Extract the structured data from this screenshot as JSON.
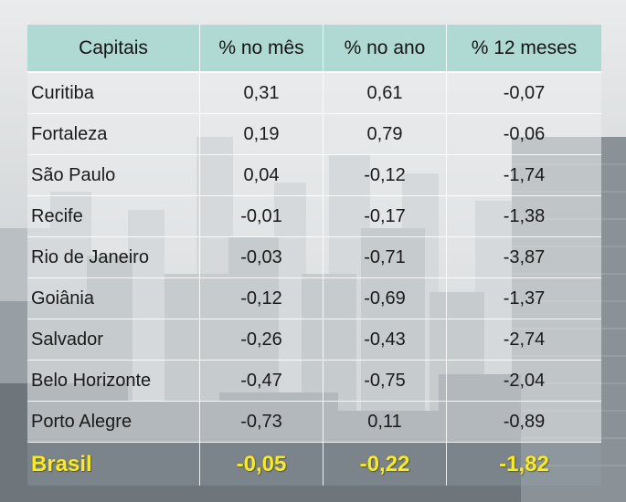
{
  "chart_data": {
    "type": "table",
    "columns": [
      "Capitais",
      "% no mês",
      "% no ano",
      "% 12 meses"
    ],
    "rows": [
      {
        "capital": "Curitiba",
        "mes": "0,31",
        "ano": "0,61",
        "doze": "-0,07"
      },
      {
        "capital": "Fortaleza",
        "mes": "0,19",
        "ano": "0,79",
        "doze": "-0,06"
      },
      {
        "capital": "São Paulo",
        "mes": "0,04",
        "ano": "-0,12",
        "doze": "-1,74"
      },
      {
        "capital": "Recife",
        "mes": "-0,01",
        "ano": "-0,17",
        "doze": "-1,38"
      },
      {
        "capital": "Rio de Janeiro",
        "mes": "-0,03",
        "ano": "-0,71",
        "doze": "-3,87"
      },
      {
        "capital": "Goiânia",
        "mes": "-0,12",
        "ano": "-0,69",
        "doze": "-1,37"
      },
      {
        "capital": "Salvador",
        "mes": "-0,26",
        "ano": "-0,43",
        "doze": "-2,74"
      },
      {
        "capital": "Belo Horizonte",
        "mes": "-0,47",
        "ano": "-0,75",
        "doze": "-2,04"
      },
      {
        "capital": "Porto Alegre",
        "mes": "-0,73",
        "ano": "0,11",
        "doze": "-0,89"
      }
    ],
    "total": {
      "capital": "Brasil",
      "mes": "-0,05",
      "ano": "-0,22",
      "doze": "-1,82"
    }
  },
  "colors": {
    "header_bg": "#a6d6cf",
    "total_text": "#f6ea2a"
  }
}
